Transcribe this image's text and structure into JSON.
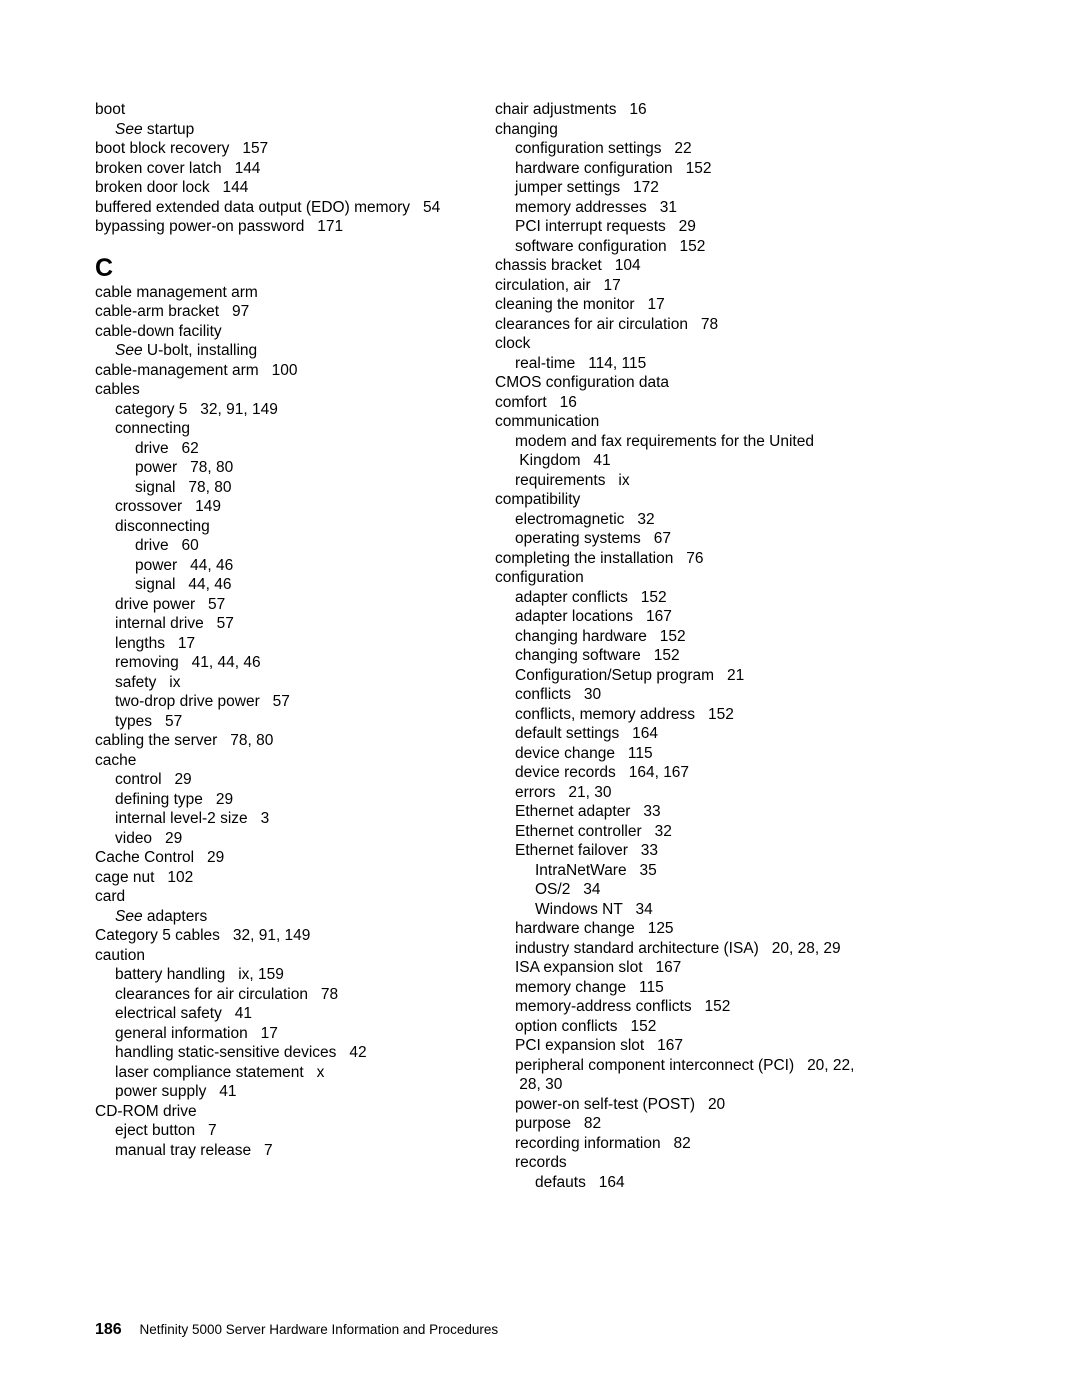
{
  "columns": {
    "left": [
      {
        "t": "entry",
        "l": 0,
        "text": "boot"
      },
      {
        "t": "see",
        "l": 1,
        "pref": "See",
        "text": " startup"
      },
      {
        "t": "entry",
        "l": 0,
        "text": "boot block recovery   157"
      },
      {
        "t": "entry",
        "l": 0,
        "text": "broken cover latch   144"
      },
      {
        "t": "entry",
        "l": 0,
        "text": "broken door lock   144"
      },
      {
        "t": "entry",
        "l": 0,
        "text": "buffered extended data output (EDO) memory   54"
      },
      {
        "t": "entry",
        "l": 0,
        "text": "bypassing power-on password   171"
      },
      {
        "t": "big",
        "text": "C"
      },
      {
        "t": "entry",
        "l": 0,
        "text": "cable management arm"
      },
      {
        "t": "entry",
        "l": 0,
        "text": "cable-arm bracket   97"
      },
      {
        "t": "entry",
        "l": 0,
        "text": "cable-down facility"
      },
      {
        "t": "see",
        "l": 1,
        "pref": "See",
        "text": " U-bolt, installing"
      },
      {
        "t": "entry",
        "l": 0,
        "text": "cable-management arm   100"
      },
      {
        "t": "entry",
        "l": 0,
        "text": "cables"
      },
      {
        "t": "entry",
        "l": 1,
        "text": "category 5   32, 91, 149"
      },
      {
        "t": "entry",
        "l": 1,
        "text": "connecting"
      },
      {
        "t": "entry",
        "l": 2,
        "text": "drive   62"
      },
      {
        "t": "entry",
        "l": 2,
        "text": "power   78, 80"
      },
      {
        "t": "entry",
        "l": 2,
        "text": "signal   78, 80"
      },
      {
        "t": "entry",
        "l": 1,
        "text": "crossover   149"
      },
      {
        "t": "entry",
        "l": 1,
        "text": "disconnecting"
      },
      {
        "t": "entry",
        "l": 2,
        "text": "drive   60"
      },
      {
        "t": "entry",
        "l": 2,
        "text": "power   44, 46"
      },
      {
        "t": "entry",
        "l": 2,
        "text": "signal   44, 46"
      },
      {
        "t": "entry",
        "l": 1,
        "text": "drive power   57"
      },
      {
        "t": "entry",
        "l": 1,
        "text": "internal drive   57"
      },
      {
        "t": "entry",
        "l": 1,
        "text": "lengths   17"
      },
      {
        "t": "entry",
        "l": 1,
        "text": "removing   41, 44, 46"
      },
      {
        "t": "entry",
        "l": 1,
        "text": "safety   ix"
      },
      {
        "t": "entry",
        "l": 1,
        "text": "two-drop drive power   57"
      },
      {
        "t": "entry",
        "l": 1,
        "text": "types   57"
      },
      {
        "t": "entry",
        "l": 0,
        "text": "cabling the server   78, 80"
      },
      {
        "t": "entry",
        "l": 0,
        "text": "cache"
      },
      {
        "t": "entry",
        "l": 1,
        "text": "control   29"
      },
      {
        "t": "entry",
        "l": 1,
        "text": "defining type   29"
      },
      {
        "t": "entry",
        "l": 1,
        "text": "internal level-2 size   3"
      },
      {
        "t": "entry",
        "l": 1,
        "text": "video   29"
      },
      {
        "t": "entry",
        "l": 0,
        "text": "Cache Control   29"
      },
      {
        "t": "entry",
        "l": 0,
        "text": "cage nut   102"
      },
      {
        "t": "entry",
        "l": 0,
        "text": "card"
      },
      {
        "t": "see",
        "l": 1,
        "pref": "See",
        "text": " adapters"
      },
      {
        "t": "entry",
        "l": 0,
        "text": "Category 5 cables   32, 91, 149"
      },
      {
        "t": "entry",
        "l": 0,
        "text": "caution"
      },
      {
        "t": "entry",
        "l": 1,
        "text": "battery handling   ix, 159"
      },
      {
        "t": "entry",
        "l": 1,
        "text": "clearances for air circulation   78"
      },
      {
        "t": "entry",
        "l": 1,
        "text": "electrical safety   41"
      },
      {
        "t": "entry",
        "l": 1,
        "text": "general information   17"
      },
      {
        "t": "entry",
        "l": 1,
        "text": "handling static-sensitive devices   42"
      },
      {
        "t": "entry",
        "l": 1,
        "text": "laser compliance statement   x"
      },
      {
        "t": "entry",
        "l": 1,
        "text": "power supply   41"
      },
      {
        "t": "entry",
        "l": 0,
        "text": "CD-ROM drive"
      },
      {
        "t": "entry",
        "l": 1,
        "text": "eject button   7"
      },
      {
        "t": "entry",
        "l": 1,
        "text": "manual tray release   7"
      }
    ],
    "right": [
      {
        "t": "entry",
        "l": 0,
        "text": "chair adjustments   16"
      },
      {
        "t": "entry",
        "l": 0,
        "text": "changing"
      },
      {
        "t": "entry",
        "l": 1,
        "text": "configuration settings   22"
      },
      {
        "t": "entry",
        "l": 1,
        "text": "hardware configuration   152"
      },
      {
        "t": "entry",
        "l": 1,
        "text": "jumper settings   172"
      },
      {
        "t": "entry",
        "l": 1,
        "text": "memory addresses   31"
      },
      {
        "t": "entry",
        "l": 1,
        "text": "PCI interrupt requests   29"
      },
      {
        "t": "entry",
        "l": 1,
        "text": "software configuration   152"
      },
      {
        "t": "entry",
        "l": 0,
        "text": "chassis bracket   104"
      },
      {
        "t": "entry",
        "l": 0,
        "text": "circulation, air   17"
      },
      {
        "t": "entry",
        "l": 0,
        "text": "cleaning the monitor   17"
      },
      {
        "t": "entry",
        "l": 0,
        "text": "clearances for air circulation   78"
      },
      {
        "t": "entry",
        "l": 0,
        "text": "clock"
      },
      {
        "t": "entry",
        "l": 1,
        "text": "real-time   114, 115"
      },
      {
        "t": "entry",
        "l": 0,
        "text": "CMOS configuration data"
      },
      {
        "t": "entry",
        "l": 0,
        "text": "comfort   16"
      },
      {
        "t": "entry",
        "l": 0,
        "text": "communication"
      },
      {
        "t": "entry",
        "l": 1,
        "text": "modem and fax requirements for the United"
      },
      {
        "t": "entry",
        "l": 1,
        "text": " Kingdom   41"
      },
      {
        "t": "entry",
        "l": 1,
        "text": "requirements   ix"
      },
      {
        "t": "entry",
        "l": 0,
        "text": "compatibility"
      },
      {
        "t": "entry",
        "l": 1,
        "text": "electromagnetic   32"
      },
      {
        "t": "entry",
        "l": 1,
        "text": "operating systems   67"
      },
      {
        "t": "entry",
        "l": 0,
        "text": "completing the installation   76"
      },
      {
        "t": "entry",
        "l": 0,
        "text": "configuration"
      },
      {
        "t": "entry",
        "l": 1,
        "text": "adapter conflicts   152"
      },
      {
        "t": "entry",
        "l": 1,
        "text": "adapter locations   167"
      },
      {
        "t": "entry",
        "l": 1,
        "text": "changing hardware   152"
      },
      {
        "t": "entry",
        "l": 1,
        "text": "changing software   152"
      },
      {
        "t": "entry",
        "l": 1,
        "text": "Configuration/Setup program   21"
      },
      {
        "t": "entry",
        "l": 1,
        "text": "conflicts   30"
      },
      {
        "t": "entry",
        "l": 1,
        "text": "conflicts, memory address   152"
      },
      {
        "t": "entry",
        "l": 1,
        "text": "default settings   164"
      },
      {
        "t": "entry",
        "l": 1,
        "text": "device change   115"
      },
      {
        "t": "entry",
        "l": 1,
        "text": "device records   164, 167"
      },
      {
        "t": "entry",
        "l": 1,
        "text": "errors   21, 30"
      },
      {
        "t": "entry",
        "l": 1,
        "text": "Ethernet adapter   33"
      },
      {
        "t": "entry",
        "l": 1,
        "text": "Ethernet controller   32"
      },
      {
        "t": "entry",
        "l": 1,
        "text": "Ethernet failover   33"
      },
      {
        "t": "entry",
        "l": 2,
        "text": "IntraNetWare   35"
      },
      {
        "t": "entry",
        "l": 2,
        "text": "OS/2   34"
      },
      {
        "t": "entry",
        "l": 2,
        "text": "Windows NT   34"
      },
      {
        "t": "entry",
        "l": 1,
        "text": "hardware change   125"
      },
      {
        "t": "entry",
        "l": 1,
        "text": "industry standard architecture (ISA)   20, 28, 29"
      },
      {
        "t": "entry",
        "l": 1,
        "text": "ISA expansion slot   167"
      },
      {
        "t": "entry",
        "l": 1,
        "text": "memory change   115"
      },
      {
        "t": "entry",
        "l": 1,
        "text": "memory-address conflicts   152"
      },
      {
        "t": "entry",
        "l": 1,
        "text": "option conflicts   152"
      },
      {
        "t": "entry",
        "l": 1,
        "text": "PCI expansion slot   167"
      },
      {
        "t": "entry",
        "l": 1,
        "text": "peripheral component interconnect (PCI)   20, 22,"
      },
      {
        "t": "entry",
        "l": 1,
        "text": " 28, 30"
      },
      {
        "t": "entry",
        "l": 1,
        "text": "power-on self-test (POST)   20"
      },
      {
        "t": "entry",
        "l": 1,
        "text": "purpose   82"
      },
      {
        "t": "entry",
        "l": 1,
        "text": "recording information   82"
      },
      {
        "t": "entry",
        "l": 1,
        "text": "records"
      },
      {
        "t": "entry",
        "l": 2,
        "text": "defauts   164"
      }
    ]
  },
  "footer": {
    "pageNumber": "186",
    "title": "Netfinity 5000 Server Hardware Information and Procedures"
  }
}
